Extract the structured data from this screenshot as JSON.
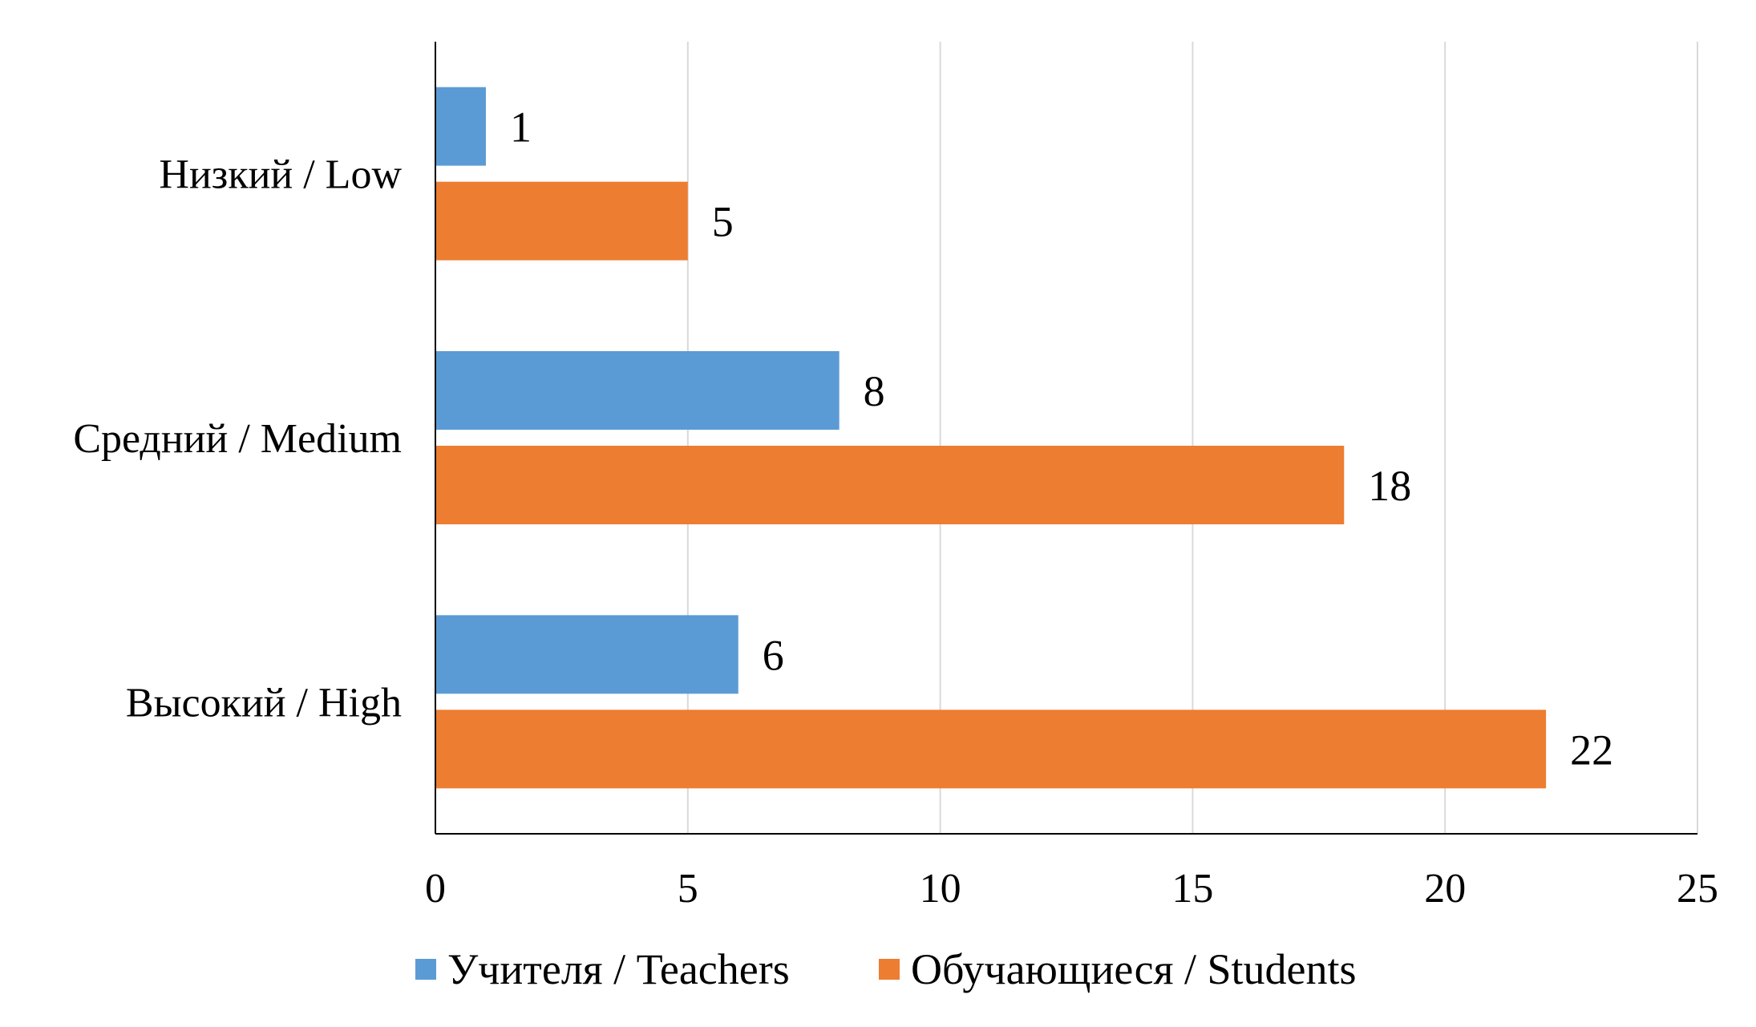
{
  "chart_data": {
    "type": "bar",
    "orientation": "horizontal",
    "categories": [
      "Низкий / Low",
      "Средний / Medium",
      "Высокий / High"
    ],
    "series": [
      {
        "name": "Учителя / Teachers",
        "values": [
          1,
          8,
          6
        ],
        "color": "#5B9BD5"
      },
      {
        "name": "Обучающиеся / Students",
        "values": [
          5,
          18,
          22
        ],
        "color": "#ED7D31"
      }
    ],
    "xlim": [
      0,
      25
    ],
    "x_ticks": [
      0,
      5,
      10,
      15,
      20,
      25
    ],
    "title": "",
    "xlabel": "",
    "ylabel": "",
    "grid": "vertical",
    "legend_position": "bottom",
    "data_labels": true
  },
  "colors": {
    "gridline": "#D9D9D9",
    "axis": "#000000"
  }
}
